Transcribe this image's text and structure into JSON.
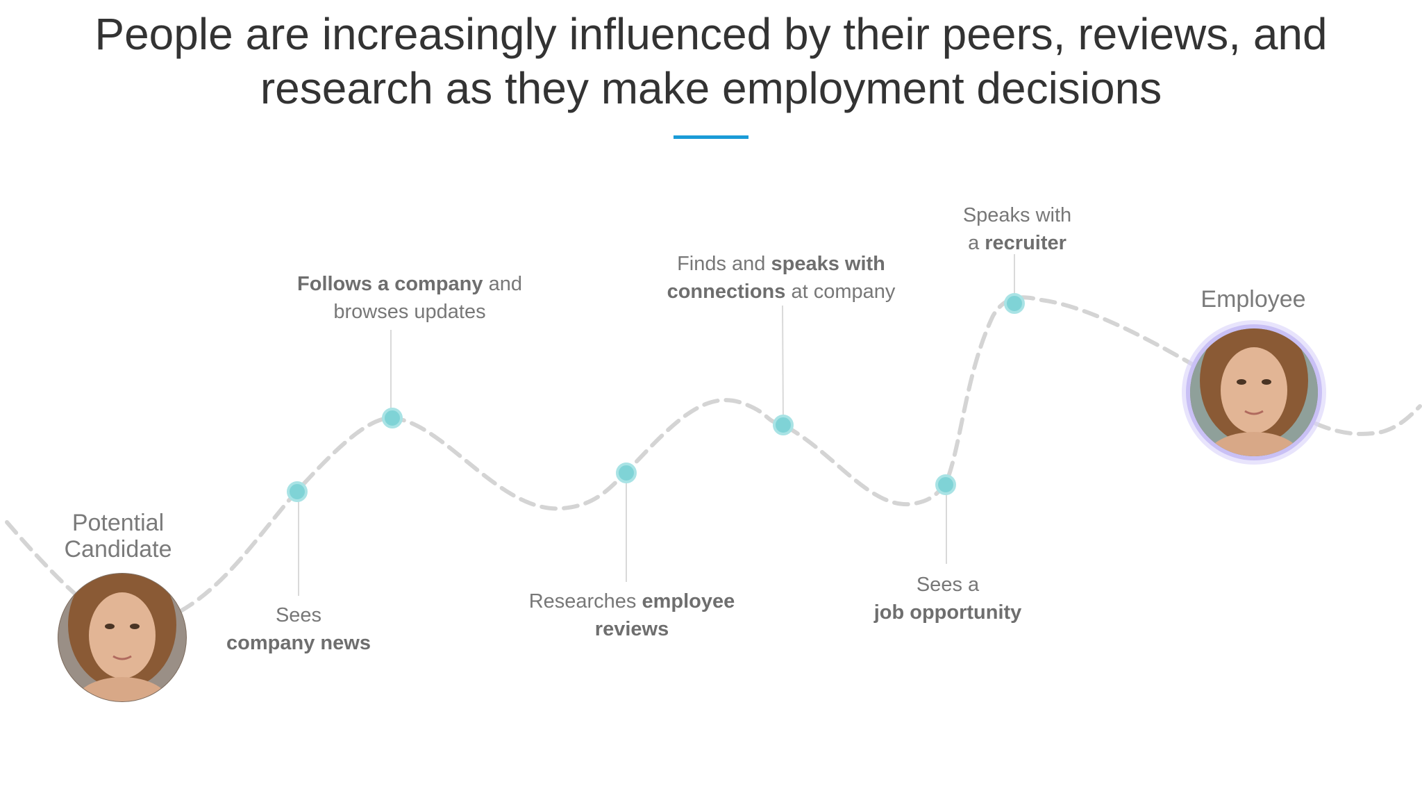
{
  "title": {
    "line1": "People are increasingly influenced by their peers, reviews, and",
    "line2": "research as they make employment decisions"
  },
  "colors": {
    "accent_rule": "#1a9bd7",
    "path": "#d4d4d4",
    "node": "#7fd3d6",
    "node_ring": "#a9e3e5",
    "employee_glow": "#c9c0f5",
    "text": "#777777"
  },
  "start": {
    "line1": "Potential",
    "line2": "Candidate",
    "avatar_icon": "woman-portrait-icon"
  },
  "end": {
    "label": "Employee",
    "avatar_icon": "woman-portrait-icon"
  },
  "steps": [
    {
      "pre": "",
      "bold": "",
      "post": "Sees",
      "line2_pre": "",
      "line2_bold": "company news",
      "line2_post": ""
    },
    {
      "pre": "",
      "bold": "Follows a company",
      "post": " and",
      "line2_pre": "browses updates",
      "line2_bold": "",
      "line2_post": ""
    },
    {
      "pre": "Researches ",
      "bold": "employee",
      "post": "",
      "line2_pre": "",
      "line2_bold": "reviews",
      "line2_post": ""
    },
    {
      "pre": "Finds and ",
      "bold": "speaks with",
      "post": "",
      "line2_pre": "",
      "line2_bold": "connections",
      "line2_post": " at company"
    },
    {
      "pre": "Sees a",
      "bold": "",
      "post": "",
      "line2_pre": "",
      "line2_bold": "job opportunity",
      "line2_post": ""
    },
    {
      "pre": "Speaks with",
      "bold": "",
      "post": "",
      "line2_pre": "a ",
      "line2_bold": "recruiter",
      "line2_post": ""
    }
  ]
}
